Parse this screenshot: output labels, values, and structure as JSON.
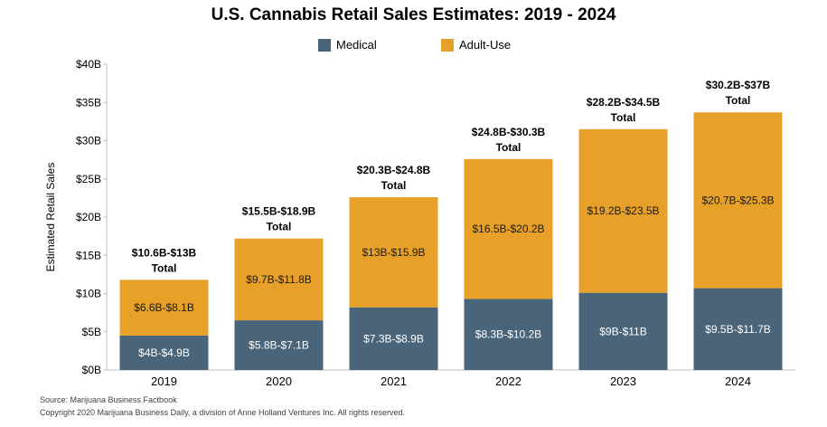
{
  "chart_data": {
    "type": "bar",
    "stacked": true,
    "title": "U.S. Cannabis Retail Sales Estimates: 2019 - 2024",
    "ylabel": "Estimated Retail Sales",
    "xlabel": "",
    "ylim": [
      0,
      40
    ],
    "yticks": [
      "$0B",
      "$5B",
      "$10B",
      "$15B",
      "$20B",
      "$25B",
      "$30B",
      "$35B",
      "$40B"
    ],
    "categories": [
      "2019",
      "2020",
      "2021",
      "2022",
      "2023",
      "2024"
    ],
    "legend_position": "top-center",
    "grid": false,
    "series": [
      {
        "name": "Medical",
        "color": "#4a6479",
        "values": [
          4.5,
          6.5,
          8.2,
          9.3,
          10.1,
          10.7
        ],
        "labels": [
          "$4B-$4.9B",
          "$5.8B-$7.1B",
          "$7.3B-$8.9B",
          "$8.3B-$10.2B",
          "$9B-$11B",
          "$9.5B-$11.7B"
        ]
      },
      {
        "name": "Adult-Use",
        "color": "#e8a128",
        "values": [
          7.3,
          10.7,
          14.4,
          18.3,
          21.4,
          23.0
        ],
        "labels": [
          "$6.6B-$8.1B",
          "$9.7B-$11.8B",
          "$13B-$15.9B",
          "$16.5B-$20.2B",
          "$19.2B-$23.5B",
          "$20.7B-$25.3B"
        ]
      }
    ],
    "totals": [
      {
        "range": "$10.6B-$13B",
        "label": "Total"
      },
      {
        "range": "$15.5B-$18.9B",
        "label": "Total"
      },
      {
        "range": "$20.3B-$24.8B",
        "label": "Total"
      },
      {
        "range": "$24.8B-$30.3B",
        "label": "Total"
      },
      {
        "range": "$28.2B-$34.5B",
        "label": "Total"
      },
      {
        "range": "$30.2B-$37B",
        "label": "Total"
      }
    ]
  },
  "footer": {
    "source": "Source: Marijuana Business Factbook",
    "copyright": "Copyright 2020 Marijuana Business Daily, a division of Anne Holland Ventures Inc. All rights reserved."
  }
}
